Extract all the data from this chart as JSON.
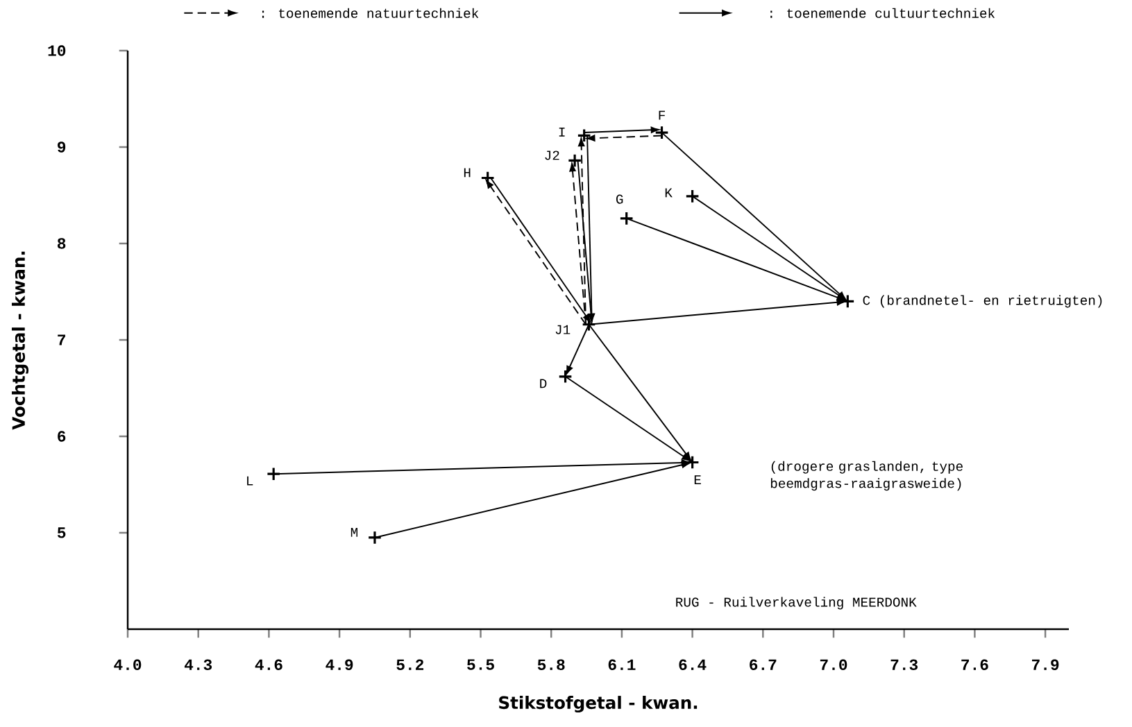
{
  "chart_data": {
    "type": "scatter",
    "xlabel": "Stikstofgetal - kwan.",
    "ylabel": "Vochtgetal - kwan.",
    "xlim": [
      4.0,
      8.0
    ],
    "ylim": [
      4.0,
      10.0
    ],
    "xticks": [
      {
        "value": 4.0,
        "label": "4.0"
      },
      {
        "value": 4.3,
        "label": "4.3"
      },
      {
        "value": 4.6,
        "label": "4.6"
      },
      {
        "value": 4.9,
        "label": "4.9"
      },
      {
        "value": 5.2,
        "label": "5.2"
      },
      {
        "value": 5.5,
        "label": "5.5"
      },
      {
        "value": 5.8,
        "label": "5.8"
      },
      {
        "value": 6.1,
        "label": "6.1"
      },
      {
        "value": 6.4,
        "label": "6.4"
      },
      {
        "value": 6.7,
        "label": "6.7"
      },
      {
        "value": 7.0,
        "label": "7.0"
      },
      {
        "value": 7.3,
        "label": "7.3"
      },
      {
        "value": 7.6,
        "label": "7.6"
      },
      {
        "value": 7.9,
        "label": "7.9"
      }
    ],
    "yticks": [
      5,
      6,
      7,
      8,
      9,
      10
    ],
    "grid": false,
    "series": [
      {
        "color": "#000000",
        "marker": "cross",
        "x": [
          5.53,
          5.94,
          5.9,
          6.27,
          6.12,
          6.4,
          5.96,
          5.86,
          4.62,
          5.05,
          7.06,
          6.4
        ],
        "values": [
          8.68,
          9.12,
          8.86,
          9.15,
          8.26,
          8.49,
          7.16,
          6.62,
          5.61,
          4.95,
          7.4,
          5.73
        ]
      }
    ],
    "annotations": [
      {
        "text": "H",
        "x": 5.53,
        "y": 8.68
      },
      {
        "text": "I",
        "x": 5.94,
        "y": 9.12
      },
      {
        "text": "J2",
        "x": 5.9,
        "y": 8.86
      },
      {
        "text": "F",
        "x": 6.27,
        "y": 9.15
      },
      {
        "text": "G",
        "x": 6.12,
        "y": 8.26
      },
      {
        "text": "K",
        "x": 6.4,
        "y": 8.49
      },
      {
        "text": "J1",
        "x": 5.96,
        "y": 7.16
      },
      {
        "text": "D",
        "x": 5.86,
        "y": 6.62
      },
      {
        "text": "L",
        "x": 4.62,
        "y": 5.61
      },
      {
        "text": "M",
        "x": 5.05,
        "y": 4.95
      },
      {
        "text": "C (brandnetel- en rietruigten)",
        "x": 7.06,
        "y": 7.4
      },
      {
        "text": "E",
        "x": 6.4,
        "y": 5.73
      },
      "(drogere graslanden, type beemdgras-raaigrasweide)",
      "RUG - Ruilverkaveling MEERDONK",
      ": toenemende natuurtechniek",
      ": toenemende cultuurtechniek"
    ]
  }
}
